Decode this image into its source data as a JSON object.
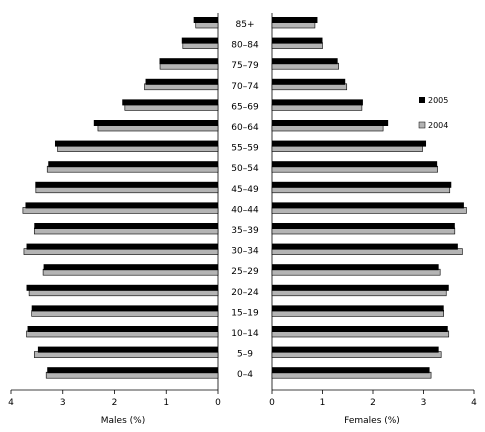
{
  "chart_data": {
    "type": "bar",
    "subtype": "population-pyramid",
    "categories": [
      "85+",
      "80–84",
      "75–79",
      "70–74",
      "65–69",
      "60–64",
      "55–59",
      "50–54",
      "45–49",
      "40–44",
      "35–39",
      "30–34",
      "25–29",
      "20–24",
      "15–19",
      "10–14",
      "5–9",
      "0–4"
    ],
    "males": {
      "axis_label": "Males (%)",
      "ticks": [
        "4",
        "3",
        "2",
        "1",
        "0"
      ],
      "xlim": [
        0,
        4
      ],
      "series": [
        {
          "name": "2005",
          "values": [
            0.47,
            0.7,
            1.13,
            1.4,
            1.85,
            2.4,
            3.15,
            3.28,
            3.53,
            3.72,
            3.55,
            3.7,
            3.37,
            3.7,
            3.6,
            3.68,
            3.48,
            3.3
          ]
        },
        {
          "name": "2004",
          "values": [
            0.43,
            0.68,
            1.12,
            1.42,
            1.8,
            2.32,
            3.1,
            3.3,
            3.52,
            3.77,
            3.55,
            3.75,
            3.38,
            3.65,
            3.6,
            3.7,
            3.55,
            3.32
          ]
        }
      ]
    },
    "females": {
      "axis_label": "Females (%)",
      "ticks": [
        "0",
        "1",
        "2",
        "3",
        "4"
      ],
      "xlim": [
        0,
        4
      ],
      "series": [
        {
          "name": "2005",
          "values": [
            0.9,
            1.0,
            1.3,
            1.45,
            1.8,
            2.3,
            3.05,
            3.27,
            3.55,
            3.8,
            3.62,
            3.68,
            3.3,
            3.5,
            3.4,
            3.48,
            3.3,
            3.12
          ]
        },
        {
          "name": "2004",
          "values": [
            0.85,
            1.0,
            1.32,
            1.48,
            1.78,
            2.2,
            2.98,
            3.28,
            3.52,
            3.85,
            3.62,
            3.77,
            3.33,
            3.45,
            3.4,
            3.5,
            3.35,
            3.15
          ]
        }
      ]
    },
    "legend": {
      "placement": "right",
      "entries": [
        {
          "label": "2005",
          "color": "#000000"
        },
        {
          "label": "2004",
          "color": "#b4b4b4"
        }
      ]
    },
    "colors": {
      "2005": "#000000",
      "2004": "#b4b4b4"
    }
  }
}
